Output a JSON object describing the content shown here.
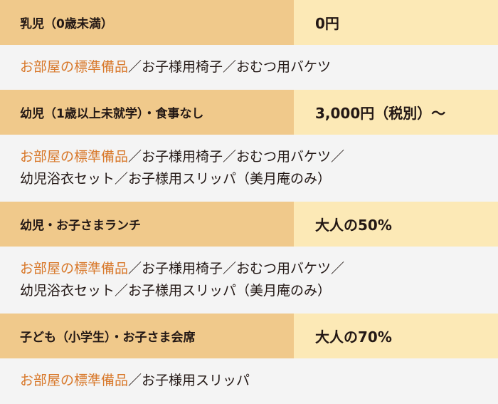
{
  "colors": {
    "label_bg": "#f0c98b",
    "price_bg": "#fce9b6",
    "desc_bg": "#f4f4f4",
    "accent": "#d8782a"
  },
  "rows": [
    {
      "label": "乳児（0歳未満）",
      "price": "0円",
      "highlight": "お部屋の標準備品",
      "lines": [
        "／お子様用椅子／おむつ用バケツ"
      ]
    },
    {
      "label": "幼児（1歳以上未就学）・食事なし",
      "price": "3,000円（税別）～",
      "highlight": "お部屋の標準備品",
      "lines": [
        "／お子様用椅子／おむつ用バケツ／",
        "幼児浴衣セット／お子様用スリッパ（美月庵のみ）"
      ]
    },
    {
      "label": "幼児・お子さまランチ",
      "price": "大人の50%",
      "highlight": "お部屋の標準備品",
      "lines": [
        "／お子様用椅子／おむつ用バケツ／",
        "幼児浴衣セット／お子様用スリッパ（美月庵のみ）"
      ]
    },
    {
      "label": "子ども（小学生）・お子さま会席",
      "price": "大人の70%",
      "highlight": "お部屋の標準備品",
      "lines": [
        "／お子様用スリッパ"
      ]
    }
  ]
}
